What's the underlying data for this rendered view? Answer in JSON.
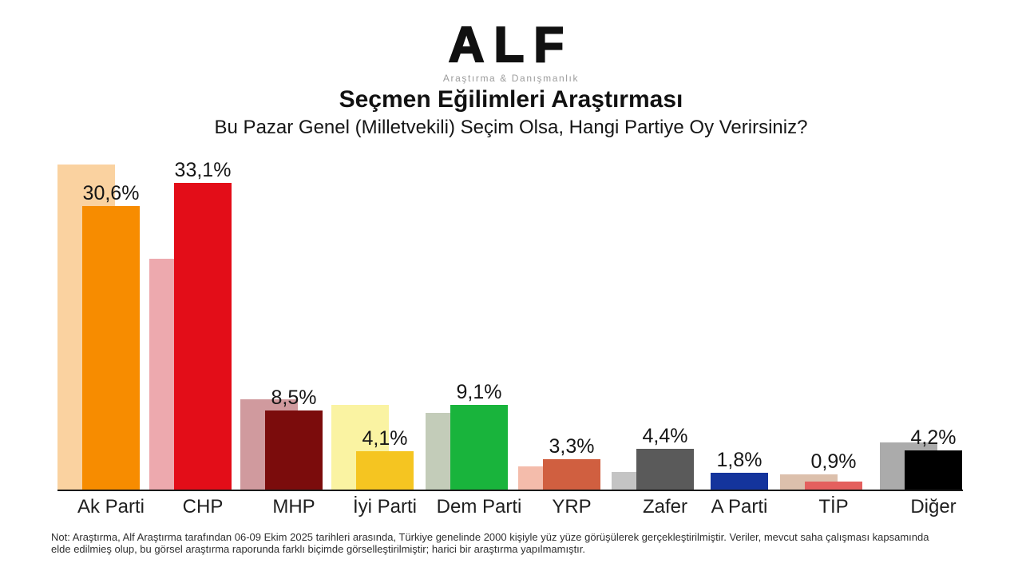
{
  "header": {
    "logo_text": "ALF",
    "logo_subtext": "Araştırma & Danışmanlık",
    "title": "Seçmen Eğilimleri Araştırması",
    "subtitle": "Bu Pazar Genel (Milletvekili) Seçim Olsa, Hangi Partiye Oy Verirsiniz?"
  },
  "chart_data": {
    "type": "bar",
    "title": "Seçmen Eğilimleri Araştırması",
    "subtitle": "Bu Pazar Genel (Milletvekili) Seçim Olsa, Hangi Partiye Oy Verirsiniz?",
    "categories": [
      "Ak Parti",
      "CHP",
      "MHP",
      "İyi Parti",
      "Dem Parti",
      "YRP",
      "Zafer",
      "A Parti",
      "TİP",
      "Diğer"
    ],
    "series": [
      {
        "name": "light_bars_unlabeled_estimated",
        "values": [
          35.1,
          24.9,
          9.7,
          9.1,
          8.3,
          2.5,
          1.9,
          null,
          1.6,
          5.1
        ]
      },
      {
        "name": "dark_bars_labeled",
        "values": [
          30.6,
          33.1,
          8.5,
          4.1,
          9.1,
          3.3,
          4.4,
          1.8,
          0.9,
          4.2
        ]
      }
    ],
    "value_labels": [
      "30,6%",
      "33,1%",
      "8,5%",
      "4,1%",
      "9,1%",
      "3,3%",
      "4,4%",
      "1,8%",
      "0,9%",
      "4,2%"
    ],
    "ylim": [
      0,
      35
    ],
    "grid": false,
    "legend": "none",
    "decimal_separator": ",",
    "bars": [
      {
        "category": "Ak Parti",
        "current": 30.6,
        "current_label": "30,6%",
        "previous": 35.1,
        "color_current": "#F78C00",
        "color_previous": "#FAD2A0"
      },
      {
        "category": "CHP",
        "current": 33.1,
        "current_label": "33,1%",
        "previous": 24.9,
        "color_current": "#E30D18",
        "color_previous": "#EDA9AE"
      },
      {
        "category": "MHP",
        "current": 8.5,
        "current_label": "8,5%",
        "previous": 9.7,
        "color_current": "#7B0C0C",
        "color_previous": "#D09A9E"
      },
      {
        "category": "İyi Parti",
        "current": 4.1,
        "current_label": "4,1%",
        "previous": 9.1,
        "color_current": "#F5C521",
        "color_previous": "#FAF3A2"
      },
      {
        "category": "Dem Parti",
        "current": 9.1,
        "current_label": "9,1%",
        "previous": 8.3,
        "color_current": "#19B43C",
        "color_previous": "#C3CCB9"
      },
      {
        "category": "YRP",
        "current": 3.3,
        "current_label": "3,3%",
        "previous": 2.5,
        "color_current": "#D05F40",
        "color_previous": "#F4BCAB"
      },
      {
        "category": "Zafer",
        "current": 4.4,
        "current_label": "4,4%",
        "previous": 1.9,
        "color_current": "#5A5A5A",
        "color_previous": "#C4C4C4"
      },
      {
        "category": "A Parti",
        "current": 1.8,
        "current_label": "1,8%",
        "previous": null,
        "color_current": "#14349C",
        "color_previous": null
      },
      {
        "category": "TİP",
        "current": 0.9,
        "current_label": "0,9%",
        "previous": 1.6,
        "color_current": "#E4605E",
        "color_previous": "#DCC0AC"
      },
      {
        "category": "Diğer",
        "current": 4.2,
        "current_label": "4,2%",
        "previous": 5.1,
        "color_current": "#000000",
        "color_previous": "#ABABAB"
      }
    ]
  },
  "note": {
    "line1": "Not: Araştırma, Alf Araştırma tarafından 06-09 Ekim 2025 tarihleri arasında, Türkiye genelinde 2000 kişiyle yüz yüze görüşülerek gerçekleştirilmiştir. Veriler, mevcut saha çalışması kapsamında",
    "line2": "elde edilmieş olup, bu görsel araştırma raporunda farklı biçimde görselleştirilmiştir; harici bir araştırma yapılmamıştır."
  }
}
